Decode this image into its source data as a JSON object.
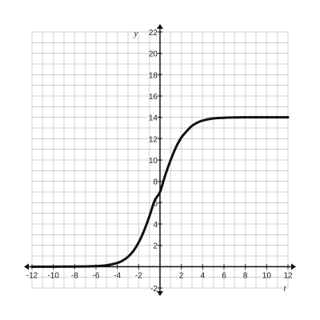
{
  "chart_data": {
    "type": "line",
    "title": "",
    "xlabel": "t",
    "ylabel": "y",
    "xlim": [
      -12,
      12
    ],
    "ylim": [
      -2,
      22
    ],
    "grid": true,
    "x_ticks": [
      -12,
      -10,
      -8,
      -6,
      -4,
      -2,
      2,
      4,
      6,
      8,
      10,
      12
    ],
    "y_ticks": [
      -2,
      2,
      4,
      6,
      8,
      10,
      12,
      14,
      16,
      18,
      20,
      22
    ],
    "x_tick_labels": [
      "-12",
      "-10",
      "-8",
      "-6",
      "-4",
      "-2",
      "2",
      "4",
      "6",
      "8",
      "10",
      "12"
    ],
    "y_tick_labels": [
      "-2",
      "2",
      "4",
      "6",
      "8",
      "10",
      "12",
      "14",
      "16",
      "18",
      "20",
      "22"
    ],
    "series": [
      {
        "x": [
          -12,
          -10,
          -8,
          -7,
          -6,
          -5,
          -4,
          -3.5,
          -3,
          -2.5,
          -2,
          -1.5,
          -1,
          -0.5,
          0,
          0.5,
          1,
          1.5,
          2,
          2.5,
          3,
          3.5,
          4,
          5,
          6,
          7,
          8,
          10,
          12
        ],
        "y": [
          0,
          0,
          0.01,
          0.02,
          0.05,
          0.13,
          0.35,
          0.57,
          0.92,
          1.47,
          2.27,
          3.36,
          4.7,
          6.2,
          7.0,
          8.6,
          10.0,
          11.2,
          12.1,
          12.7,
          13.2,
          13.5,
          13.7,
          13.9,
          13.96,
          13.99,
          14.0,
          14.0,
          14.0
        ]
      }
    ],
    "colors": {
      "curve": "#111111",
      "grid": "#cfcfcf",
      "axis": "#111111"
    }
  }
}
